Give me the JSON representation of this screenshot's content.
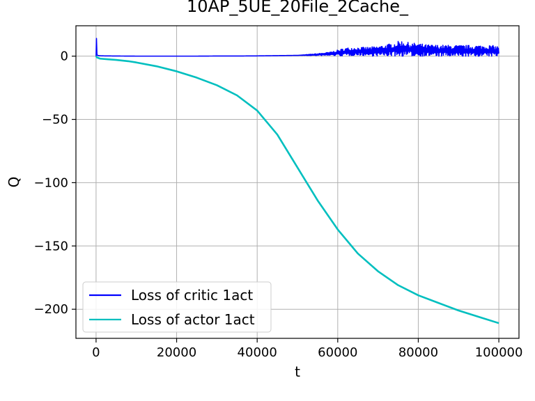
{
  "chart_data": {
    "type": "line",
    "title": "10AP_5UE_20File_2Cache_",
    "xlabel": "t",
    "ylabel": "Q",
    "xlim": [
      -5000,
      105000
    ],
    "ylim": [
      -223,
      24
    ],
    "xticks": [
      0,
      20000,
      40000,
      60000,
      80000,
      100000
    ],
    "xtick_labels": [
      "0",
      "20000",
      "40000",
      "60000",
      "80000",
      "100000"
    ],
    "yticks": [
      0,
      -50,
      -100,
      -150,
      -200
    ],
    "ytick_labels": [
      "0",
      "−50",
      "−100",
      "−150",
      "−200"
    ],
    "grid": true,
    "legend_position": "lower-left",
    "series": [
      {
        "name": "Loss of critic 1act",
        "color": "#0000ff",
        "x": [
          0,
          100,
          200,
          500,
          1000,
          2000,
          5000,
          10000,
          15000,
          20000,
          25000,
          30000,
          35000,
          40000,
          45000,
          50000,
          55000,
          58000,
          60000,
          62000,
          64000,
          66000,
          68000,
          70000,
          72000,
          74000,
          76000,
          78000,
          80000,
          82000,
          84000,
          86000,
          88000,
          90000,
          92000,
          94000,
          96000,
          98000,
          100000
        ],
        "values": [
          0,
          14,
          1,
          0.5,
          0.3,
          0.2,
          0.1,
          0,
          0,
          0,
          0,
          0.1,
          0.1,
          0.2,
          0.4,
          0.6,
          1.0,
          1.5,
          2.0,
          2.5,
          3.0,
          3.0,
          2.8,
          3.0,
          3.5,
          4.0,
          4.5,
          4.0,
          3.8,
          3.5,
          3.3,
          3.2,
          3.0,
          3.0,
          3.0,
          3.0,
          3.0,
          3.0,
          3.0
        ],
        "noise_envelope": {
          "x": [
            0,
            50000,
            58000,
            62000,
            66000,
            70000,
            72000,
            74000,
            75500,
            78000,
            80000,
            82000,
            86000,
            90000,
            94000,
            98000,
            100000
          ],
          "values": [
            0,
            0,
            2,
            5,
            5,
            6,
            7,
            8,
            10,
            8,
            8,
            7,
            7,
            7,
            7,
            7,
            6
          ]
        }
      },
      {
        "name": "Loss of actor 1act",
        "color": "#00bfbf",
        "x": [
          0,
          200,
          1000,
          3000,
          5000,
          8000,
          10000,
          15000,
          20000,
          25000,
          30000,
          35000,
          40000,
          45000,
          50000,
          55000,
          60000,
          65000,
          70000,
          75000,
          80000,
          85000,
          90000,
          95000,
          100000
        ],
        "values": [
          0,
          -1,
          -2,
          -2.5,
          -3,
          -4,
          -5,
          -8,
          -12,
          -17,
          -23,
          -31,
          -43,
          -62,
          -88,
          -114,
          -137,
          -156,
          -170,
          -181,
          -189,
          -195,
          -201,
          -206,
          -211
        ]
      }
    ]
  }
}
